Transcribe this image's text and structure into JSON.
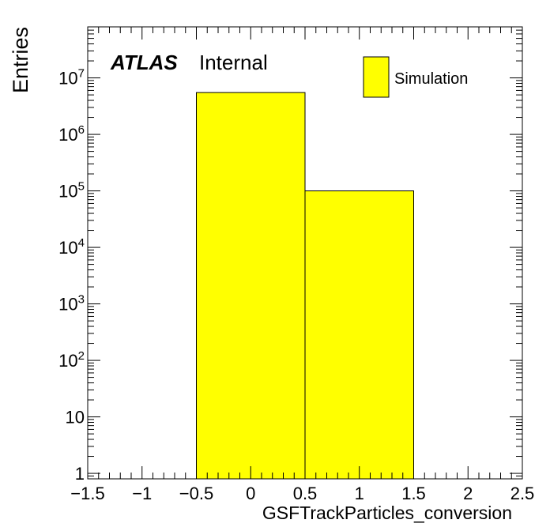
{
  "chart_data": {
    "type": "bar",
    "histogram": true,
    "xlabel": "GSFTrackParticles_conversion",
    "ylabel": "Entries",
    "xlim": [
      -1.5,
      2.5
    ],
    "ylim": [
      0.8,
      80000000
    ],
    "yscale": "log",
    "grid": false,
    "legend_position": "top-right",
    "bins": [
      {
        "low": -0.5,
        "high": 0.5,
        "value": 5500000
      },
      {
        "low": 0.5,
        "high": 1.5,
        "value": 100000
      }
    ],
    "series": [
      {
        "name": "Simulation",
        "color": "#ffff00"
      }
    ],
    "x_ticks": [
      {
        "value": -1.5,
        "label": "−1.5"
      },
      {
        "value": -1,
        "label": "−1"
      },
      {
        "value": -0.5,
        "label": "−0.5"
      },
      {
        "value": 0,
        "label": "0"
      },
      {
        "value": 0.5,
        "label": "0.5"
      },
      {
        "value": 1,
        "label": "1"
      },
      {
        "value": 1.5,
        "label": "1.5"
      },
      {
        "value": 2,
        "label": "2"
      },
      {
        "value": 2.5,
        "label": "2.5"
      }
    ],
    "y_ticks": [
      {
        "value": 1,
        "base": "1",
        "exp": ""
      },
      {
        "value": 10,
        "base": "10",
        "exp": ""
      },
      {
        "value": 100,
        "base": "10",
        "exp": "2"
      },
      {
        "value": 1000,
        "base": "10",
        "exp": "3"
      },
      {
        "value": 10000,
        "base": "10",
        "exp": "4"
      },
      {
        "value": 100000,
        "base": "10",
        "exp": "5"
      },
      {
        "value": 1000000,
        "base": "10",
        "exp": "6"
      },
      {
        "value": 10000000,
        "base": "10",
        "exp": "7"
      }
    ],
    "annotation": {
      "bold": "ATLAS",
      "normal": "Internal"
    }
  }
}
